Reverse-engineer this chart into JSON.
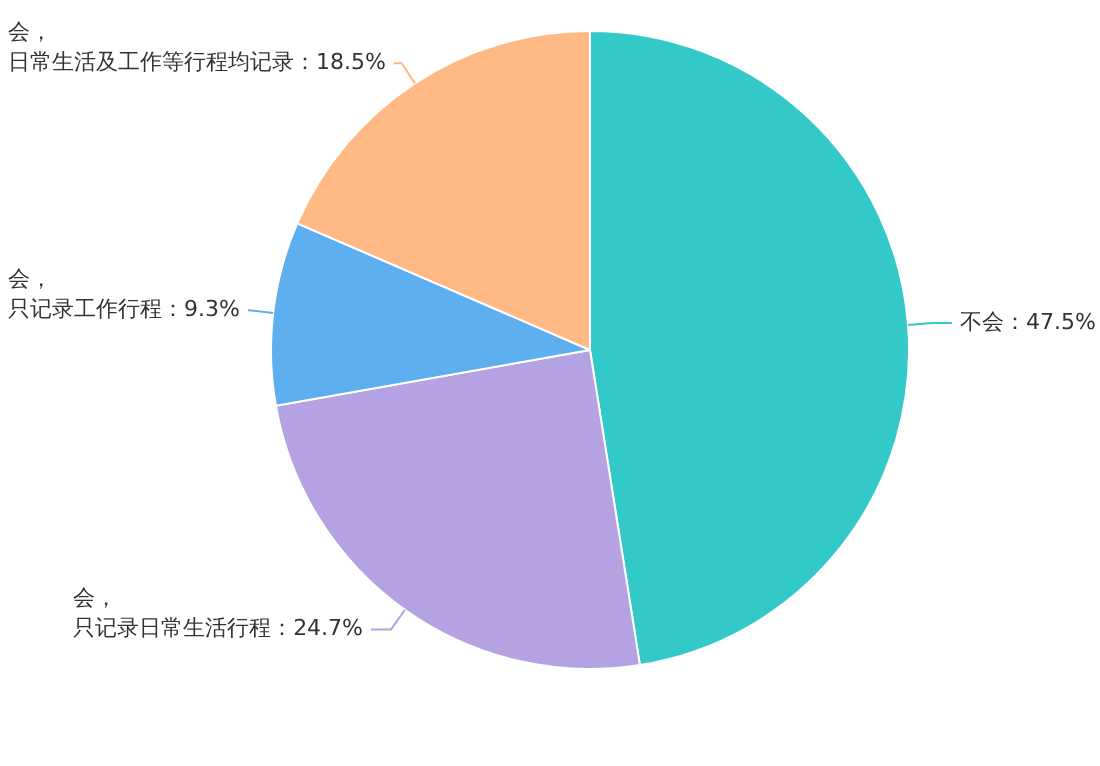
{
  "chart_data": {
    "type": "pie",
    "categories": [
      "不会",
      "会，只记录日常生活行程",
      "会，只记录工作行程",
      "会，日常生活及工作等行程均记录"
    ],
    "values": [
      47.5,
      24.7,
      9.3,
      18.5
    ],
    "value_labels": [
      "47.5%",
      "24.7%",
      "9.3%",
      "18.5%"
    ],
    "colors": [
      "#33c9c9",
      "#b4a2e2",
      "#5eaff0",
      "#ffb985"
    ],
    "legend": false
  }
}
